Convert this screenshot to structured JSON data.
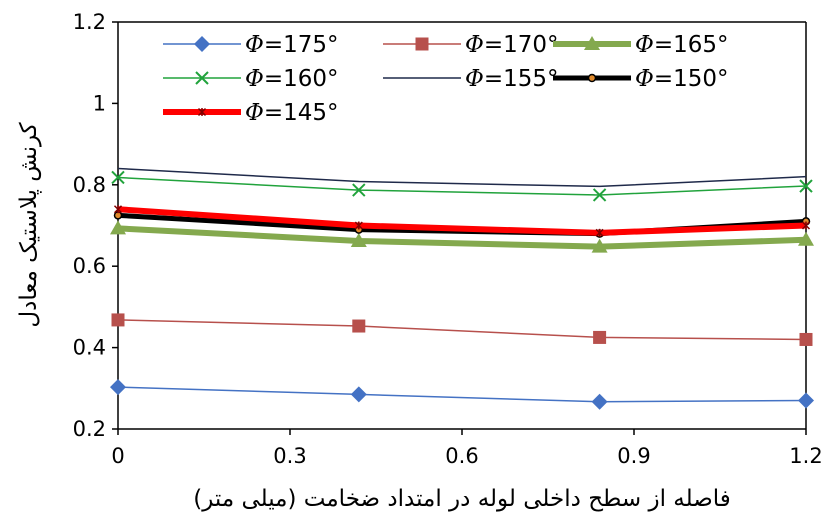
{
  "chart_data": {
    "type": "line",
    "xlabel": "فاصله از سطح داخلی لوله در امتداد ضخامت (میلی متر)",
    "ylabel": "کرنش پلاستیک معادل",
    "xlim": [
      0,
      1.2
    ],
    "ylim": [
      0.2,
      1.2
    ],
    "x_ticks": [
      "0",
      "0.3",
      "0.6",
      "0.9",
      "1.2"
    ],
    "y_ticks": [
      "0.2",
      "0.4",
      "0.6",
      "0.8",
      "1",
      "1.2"
    ],
    "x": [
      0,
      0.42,
      0.84,
      1.2
    ],
    "grid": false,
    "legend_position": "top",
    "series": [
      {
        "name": "Φ=175°",
        "values": [
          0.303,
          0.285,
          0.267,
          0.27
        ],
        "color": "#4472C4",
        "marker": "diamond",
        "width": 1.5
      },
      {
        "name": "Φ=170°",
        "values": [
          0.468,
          0.453,
          0.425,
          0.42
        ],
        "color": "#B7504C",
        "marker": "square",
        "width": 1.5
      },
      {
        "name": "Φ=165°",
        "values": [
          0.693,
          0.662,
          0.648,
          0.665
        ],
        "color": "#84A94E",
        "marker": "triangle",
        "width": 6
      },
      {
        "name": "Φ=160°",
        "values": [
          0.818,
          0.787,
          0.775,
          0.797
        ],
        "color": "#21A33C",
        "marker": "x",
        "width": 1.5
      },
      {
        "name": "Φ=155°",
        "values": [
          0.84,
          0.808,
          0.796,
          0.82
        ],
        "color": "#1F2A4A",
        "marker": "none",
        "width": 1.5
      },
      {
        "name": "Φ=150°",
        "values": [
          0.725,
          0.69,
          0.68,
          0.71
        ],
        "color": "#000000",
        "marker": "circle",
        "width": 5
      },
      {
        "name": "Φ=145°",
        "values": [
          0.74,
          0.7,
          0.682,
          0.7
        ],
        "color": "#FF0000",
        "marker": "star",
        "width": 6
      }
    ]
  }
}
